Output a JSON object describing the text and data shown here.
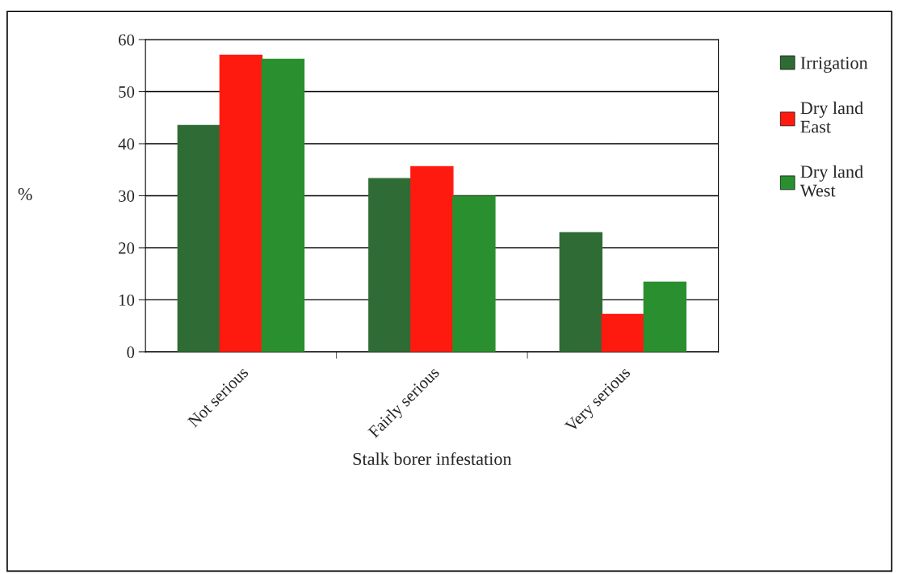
{
  "chart_data": {
    "type": "bar",
    "xlabel": "Stalk borer infestation",
    "ylabel": "%",
    "categories": [
      "Not serious",
      "Fairly serious",
      "Very serious"
    ],
    "series": [
      {
        "name": "Irrigation",
        "color": "#2e6b35",
        "values": [
          43.5,
          33.3,
          22.9
        ]
      },
      {
        "name": "Dry land East",
        "color": "#ff1a10",
        "values": [
          57.0,
          35.6,
          7.2
        ]
      },
      {
        "name": "Dry land West",
        "color": "#2a8f2f",
        "values": [
          56.2,
          29.9,
          13.4
        ]
      }
    ],
    "ylim": [
      0,
      60
    ],
    "yticks": [
      0,
      10,
      20,
      30,
      40,
      50,
      60
    ],
    "grid": "y",
    "legend": "right"
  }
}
